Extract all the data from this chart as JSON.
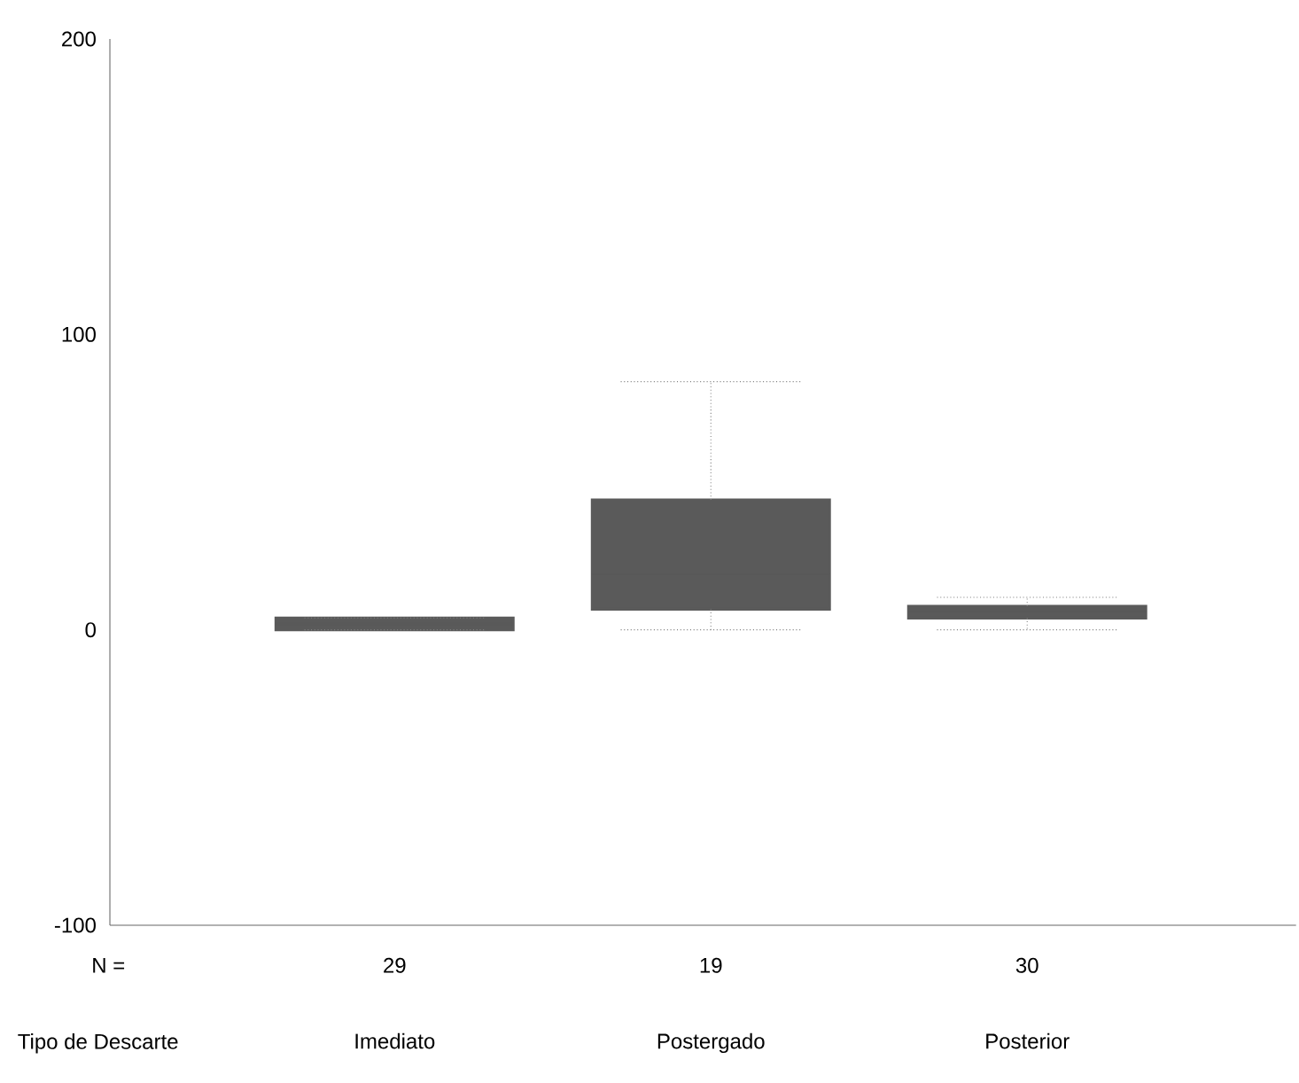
{
  "chart_data": {
    "type": "box",
    "xlabel": "Tipo de Descarte",
    "categories": [
      "Imediato",
      "Postergado",
      "Posterior"
    ],
    "boxes": [
      {
        "low": 0,
        "q1": 0,
        "median": 2,
        "q3": 4,
        "high": 4
      },
      {
        "low": 0,
        "q1": 7,
        "median": 19,
        "q3": 44,
        "high": 84
      },
      {
        "low": 0,
        "q1": 4,
        "median": 6,
        "q3": 8,
        "high": 11
      }
    ],
    "color": "#5a5a5a",
    "ylim": [
      -100,
      200
    ],
    "yticks": [
      -100,
      0,
      100,
      200
    ],
    "annotations": [
      "N =",
      "29",
      "19",
      "30"
    ]
  }
}
